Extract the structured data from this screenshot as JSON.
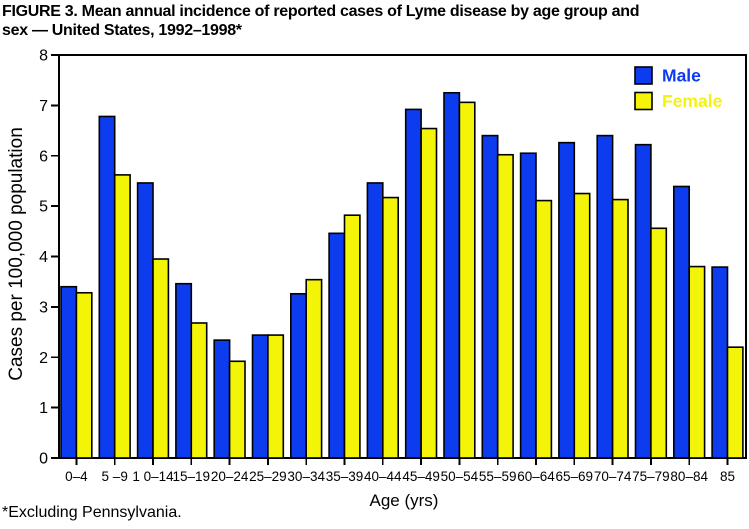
{
  "figure": {
    "title_line1": "FIGURE 3. Mean annual incidence of reported cases of Lyme disease by age group and",
    "title_line2": "sex — United States, 1992–1998*",
    "footnote": "*Excluding Pennsylvania."
  },
  "chart_data": {
    "type": "bar",
    "title": "FIGURE 3. Mean annual incidence of reported cases of Lyme disease by age group and sex — United States, 1992–1998*",
    "xlabel": "Age (yrs)",
    "ylabel": "Cases per 100,000 population",
    "ylim": [
      0,
      8
    ],
    "yticks": [
      0,
      1,
      2,
      3,
      4,
      5,
      6,
      7,
      8
    ],
    "grid": false,
    "categories": [
      "0–4",
      "5 –9",
      "1 0–14",
      "15–19",
      "20–24",
      "25–29",
      "30–34",
      "35–39",
      "40–44",
      "45–49",
      "50–54",
      "55–59",
      "60–64",
      "65–69",
      "70–74",
      "75–79",
      "80–84",
      "85"
    ],
    "series": [
      {
        "name": "Male",
        "color": "#0c3cee",
        "values": [
          3.4,
          6.78,
          5.46,
          3.46,
          2.34,
          2.44,
          3.26,
          4.46,
          5.46,
          6.92,
          7.25,
          6.4,
          6.05,
          6.26,
          6.4,
          6.22,
          5.39,
          3.79
        ]
      },
      {
        "name": "Female",
        "color": "#f4f408",
        "values": [
          3.28,
          5.62,
          3.95,
          2.68,
          1.92,
          2.44,
          3.54,
          4.82,
          5.17,
          6.54,
          7.06,
          6.02,
          5.11,
          5.25,
          5.13,
          4.56,
          3.8,
          2.2
        ]
      }
    ],
    "legend": {
      "labels": [
        "Male",
        "Female"
      ],
      "position": "top-right-inside"
    },
    "colors": {
      "bar_outline": "#000000",
      "axis": "#000000",
      "background": "#ffffff"
    }
  }
}
